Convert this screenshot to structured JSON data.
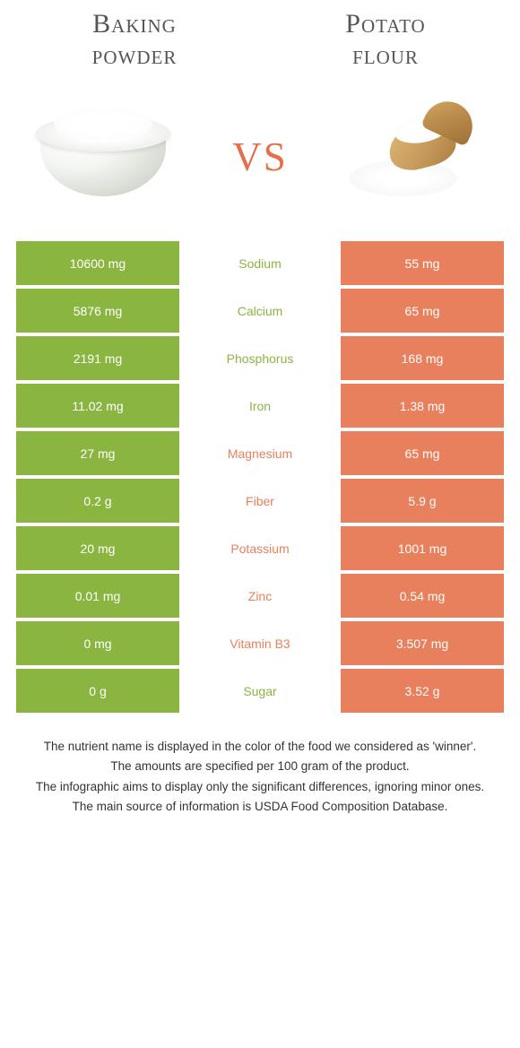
{
  "colors": {
    "green": "#8bb541",
    "orange": "#e8805d",
    "vs": "#e2714a",
    "title": "#555555",
    "text": "#333333",
    "white": "#ffffff"
  },
  "header": {
    "left": "Baking\npowder",
    "right": "Potato\nflour",
    "vs": "vs"
  },
  "rows": [
    {
      "nutrient": "Sodium",
      "left": "10600 mg",
      "right": "55 mg",
      "winner": "left"
    },
    {
      "nutrient": "Calcium",
      "left": "5876 mg",
      "right": "65 mg",
      "winner": "left"
    },
    {
      "nutrient": "Phosphorus",
      "left": "2191 mg",
      "right": "168 mg",
      "winner": "left"
    },
    {
      "nutrient": "Iron",
      "left": "11.02 mg",
      "right": "1.38 mg",
      "winner": "left"
    },
    {
      "nutrient": "Magnesium",
      "left": "27 mg",
      "right": "65 mg",
      "winner": "right"
    },
    {
      "nutrient": "Fiber",
      "left": "0.2 g",
      "right": "5.9 g",
      "winner": "right"
    },
    {
      "nutrient": "Potassium",
      "left": "20 mg",
      "right": "1001 mg",
      "winner": "right"
    },
    {
      "nutrient": "Zinc",
      "left": "0.01 mg",
      "right": "0.54 mg",
      "winner": "right"
    },
    {
      "nutrient": "Vitamin B3",
      "left": "0 mg",
      "right": "3.507 mg",
      "winner": "right"
    },
    {
      "nutrient": "Sugar",
      "left": "0 g",
      "right": "3.52 g",
      "winner": "left"
    }
  ],
  "footnotes": [
    "The nutrient name is displayed in the color of the food we considered as 'winner'.",
    "The amounts are specified per 100 gram of the product.",
    "The infographic aims to display only the significant differences, ignoring minor ones.",
    "The main source of information is USDA Food Composition Database."
  ]
}
